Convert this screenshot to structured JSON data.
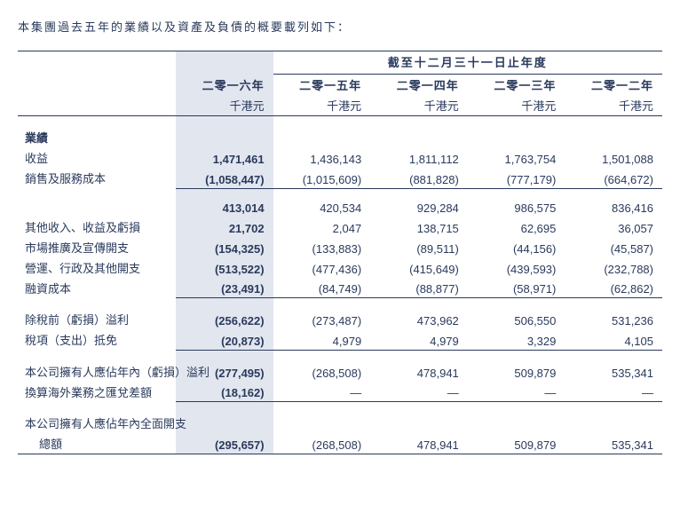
{
  "intro": "本集團過去五年的業績以及資產及負債的概要載列如下：",
  "table": {
    "spanning_header": "截至十二月三十一日止年度",
    "years": [
      "二零一六年",
      "二零一五年",
      "二零一四年",
      "二零一三年",
      "二零一二年"
    ],
    "unit_label": "千港元",
    "sections": {
      "results_head": "業績",
      "rows": [
        {
          "label": "收益",
          "v": [
            "1,471,461",
            "1,436,143",
            "1,811,112",
            "1,763,754",
            "1,501,088"
          ]
        },
        {
          "label": "銷售及服務成本",
          "v": [
            "(1,058,447)",
            "(1,015,609)",
            "(881,828)",
            "(777,179)",
            "(664,672)"
          ]
        },
        {
          "label": "",
          "v": [
            "413,014",
            "420,534",
            "929,284",
            "986,575",
            "836,416"
          ]
        },
        {
          "label": "其他收入、收益及虧損",
          "v": [
            "21,702",
            "2,047",
            "138,715",
            "62,695",
            "36,057"
          ]
        },
        {
          "label": "市場推廣及宣傳開支",
          "v": [
            "(154,325)",
            "(133,883)",
            "(89,511)",
            "(44,156)",
            "(45,587)"
          ]
        },
        {
          "label": "營運、行政及其他開支",
          "v": [
            "(513,522)",
            "(477,436)",
            "(415,649)",
            "(439,593)",
            "(232,788)"
          ]
        },
        {
          "label": "融資成本",
          "v": [
            "(23,491)",
            "(84,749)",
            "(88,877)",
            "(58,971)",
            "(62,862)"
          ]
        },
        {
          "label": "除稅前（虧損）溢利",
          "v": [
            "(256,622)",
            "(273,487)",
            "473,962",
            "506,550",
            "531,236"
          ]
        },
        {
          "label": "稅項（支出）抵免",
          "v": [
            "(20,873)",
            "4,979",
            "4,979",
            "3,329",
            "4,105"
          ]
        },
        {
          "label": "本公司擁有人應佔年內（虧損）溢利",
          "v": [
            "(277,495)",
            "(268,508)",
            "478,941",
            "509,879",
            "535,341"
          ]
        },
        {
          "label": "換算海外業務之匯兌差額",
          "v": [
            "(18,162)",
            "—",
            "—",
            "—",
            "—"
          ]
        },
        {
          "label": "本公司擁有人應佔年內全面開支",
          "v": [
            "",
            "",
            "",
            "",
            ""
          ]
        },
        {
          "label": "總額",
          "v": [
            "(295,657)",
            "(268,508)",
            "478,941",
            "509,879",
            "535,341"
          ],
          "indent": true
        }
      ]
    }
  },
  "colors": {
    "text": "#2a3a5c",
    "shade": "#e2e6ef",
    "rule": "#2a3a5c",
    "background": "#ffffff"
  }
}
